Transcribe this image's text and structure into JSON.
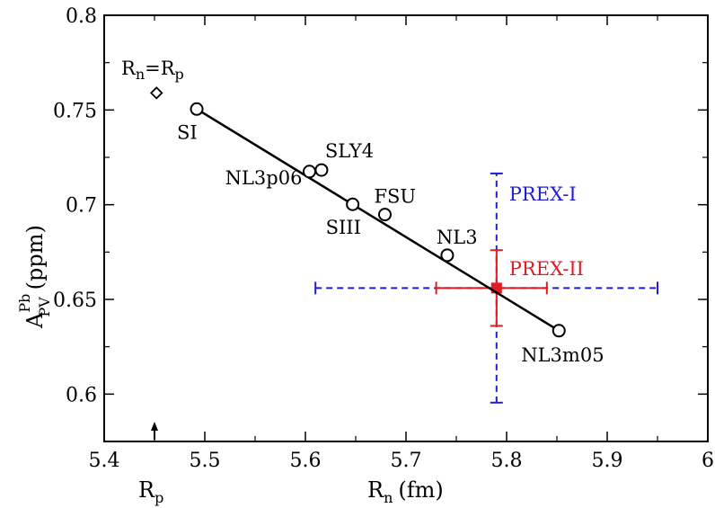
{
  "chart_data": {
    "type": "scatter",
    "xlabel": {
      "main": "R",
      "sub": "n",
      "unit": "(fm)"
    },
    "ylabel": {
      "main": "A",
      "sup": "Pb",
      "sub": "PV",
      "unit": "(ppm)"
    },
    "xlim": [
      5.4,
      6.0
    ],
    "ylim": [
      0.575,
      0.8
    ],
    "xticks": [
      5.4,
      5.5,
      5.6,
      5.7,
      5.8,
      5.9,
      6.0
    ],
    "xtick_labels": [
      "5.4",
      "5.5",
      "5.6",
      "5.7",
      "5.8",
      "5.9",
      "6"
    ],
    "yticks": [
      0.6,
      0.65,
      0.7,
      0.75,
      0.8
    ],
    "ytick_labels": [
      "0.6",
      "0.65",
      "0.7",
      "0.75",
      "0.8"
    ],
    "grid": false,
    "models": [
      {
        "name": "SI",
        "x": 5.492,
        "y": 0.7505
      },
      {
        "name": "NL3p06",
        "x": 5.604,
        "y": 0.7175
      },
      {
        "name": "SLY4",
        "x": 5.616,
        "y": 0.7183
      },
      {
        "name": "SIII",
        "x": 5.647,
        "y": 0.7002
      },
      {
        "name": "FSU",
        "x": 5.679,
        "y": 0.6948
      },
      {
        "name": "NL3",
        "x": 5.741,
        "y": 0.6733
      },
      {
        "name": "NL3m05",
        "x": 5.852,
        "y": 0.6335
      }
    ],
    "fit_line": {
      "x": [
        5.492,
        5.852
      ],
      "y": [
        0.7505,
        0.6335
      ]
    },
    "rn_eq_rp": {
      "label_main": "R",
      "label_sub1": "n",
      "eq": "=R",
      "label_sub2": "p",
      "x": 5.452,
      "y": 0.759
    },
    "rp_marker": {
      "label_main": "R",
      "label_sub": "p",
      "x": 5.45
    },
    "experiments": [
      {
        "name": "PREX-I",
        "color": "#1f1fd1",
        "dash": true,
        "x": 5.79,
        "y": 0.656,
        "xerr": [
          5.61,
          5.95
        ],
        "yerr": [
          0.5955,
          0.7165
        ]
      },
      {
        "name": "PREX-II",
        "color": "#e01b24",
        "dash": false,
        "x": 5.79,
        "y": 0.656,
        "xerr": [
          5.73,
          5.84
        ],
        "yerr": [
          0.636,
          0.676
        ]
      }
    ]
  }
}
